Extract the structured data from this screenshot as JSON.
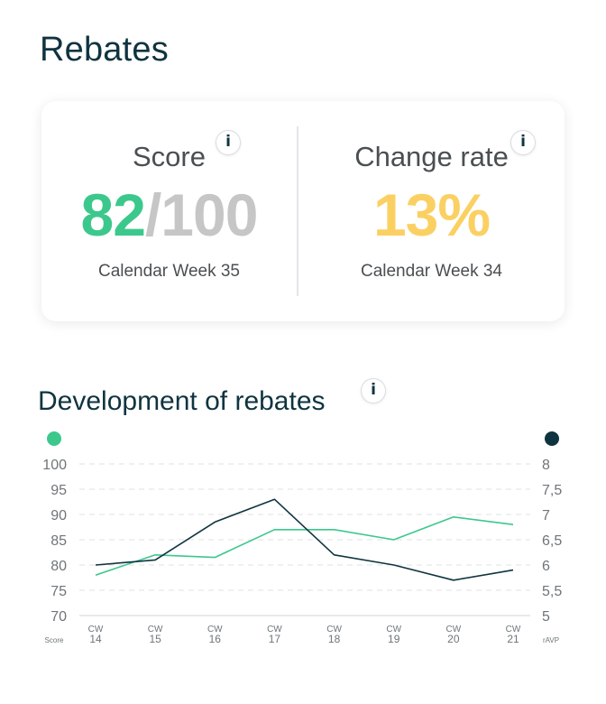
{
  "header": {
    "title": "Rebates"
  },
  "score_card": {
    "label": "Score",
    "value": "82",
    "max": "/100",
    "period": "Calendar Week 35",
    "info_glyph": "i"
  },
  "change_card": {
    "label": "Change rate",
    "value": "13%",
    "period": "Calendar Week 34",
    "info_glyph": "i"
  },
  "development": {
    "title": "Development of rebates",
    "info_glyph": "i"
  },
  "colors": {
    "score": "#3cc88c",
    "ravp": "#0f3440",
    "max_text": "#c6c6c6",
    "change_rate": "#fbd063"
  },
  "icons": {
    "info": "info-icon",
    "score_legend": "green-dot-legend",
    "ravp_legend": "navy-dot-legend"
  },
  "chart_data": {
    "type": "line",
    "categories": [
      "CW\n14",
      "CW\n15",
      "CW\n16",
      "CW\n17",
      "CW\n18",
      "CW\n19",
      "CW\n20",
      "CW\n21"
    ],
    "x_label_top": [
      "CW",
      "CW",
      "CW",
      "CW",
      "CW",
      "CW",
      "CW",
      "CW"
    ],
    "x_label_bottom": [
      "14",
      "15",
      "16",
      "17",
      "18",
      "19",
      "20",
      "21"
    ],
    "series": [
      {
        "name": "Score",
        "axis": "left",
        "values": [
          78,
          82,
          81.5,
          87,
          87,
          85,
          89.5,
          88
        ]
      },
      {
        "name": "rAVP",
        "axis": "right",
        "values": [
          6,
          6.1,
          6.85,
          7.3,
          6.2,
          6,
          5.7,
          5.9
        ]
      }
    ],
    "ylim_left": [
      70,
      100
    ],
    "ylim_right": [
      5,
      8
    ],
    "y_ticks_left": [
      "100",
      "95",
      "90",
      "85",
      "80",
      "75",
      "70"
    ],
    "y_ticks_right": [
      "8",
      "7,5",
      "7",
      "6,5",
      "6",
      "5,5",
      "5"
    ],
    "ylabel_left": "Score",
    "ylabel_right": "rAVP",
    "grid": true
  }
}
